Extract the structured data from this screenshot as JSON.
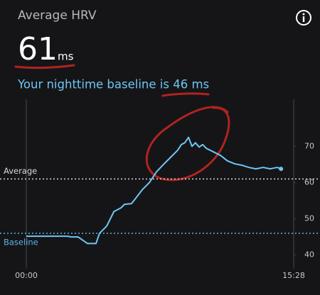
{
  "header": {
    "title": "Average HRV",
    "value": "61",
    "unit": "ms",
    "baseline_text": "Your nighttime baseline is 46 ms"
  },
  "chart_data": {
    "type": "line",
    "x": [
      0,
      57,
      143,
      155,
      180,
      212,
      242,
      254,
      279,
      304,
      328,
      341,
      365,
      378,
      402,
      427,
      452,
      476,
      501,
      526,
      538,
      550,
      563,
      575,
      587,
      600,
      612,
      624,
      649,
      674,
      698,
      723,
      748,
      772,
      797,
      822,
      847,
      871,
      884
    ],
    "series": [
      {
        "color": "#6ec6f5",
        "values": [
          45.2,
          45.2,
          45.2,
          45,
          45,
          43.2,
          43.2,
          46,
          48,
          52,
          53,
          54,
          54.2,
          55.5,
          58,
          60,
          63,
          65,
          67,
          69,
          70.5,
          71,
          72.5,
          70,
          71,
          69.8,
          70.5,
          69.5,
          68.5,
          67.5,
          66,
          65.2,
          64.8,
          64.2,
          63.8,
          64.2,
          63.8,
          64.2,
          63.8
        ]
      }
    ],
    "xlim": [
      0,
      928
    ],
    "xticks": [
      {
        "value": 0,
        "label": "00:00"
      },
      {
        "value": 928,
        "label": "15:28"
      }
    ],
    "ylim": [
      37,
      83
    ],
    "yticks": [
      40,
      50,
      60,
      70
    ],
    "reference_lines": [
      {
        "label": "Average",
        "value": 61,
        "color": "#d8d8d8"
      },
      {
        "label": "Baseline",
        "value": 46,
        "color": "#5ab4e8"
      }
    ]
  }
}
